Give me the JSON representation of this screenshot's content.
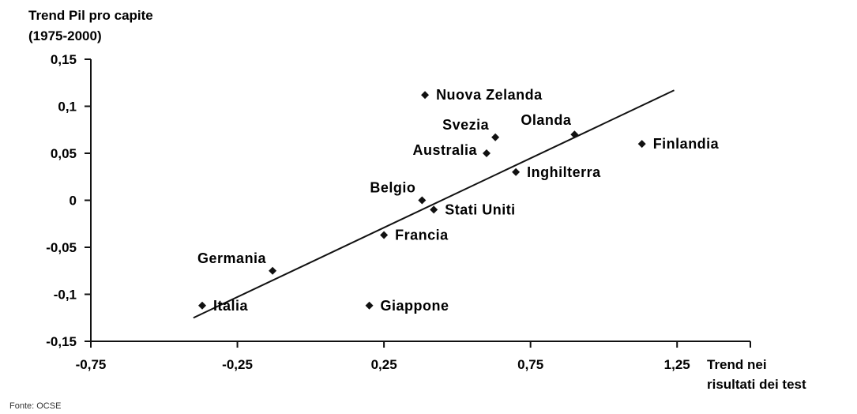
{
  "chart_data": {
    "type": "scatter",
    "ylabel": [
      "Trend Pil pro capite",
      "(1975-2000)"
    ],
    "xlabel": [
      "Trend nei",
      "risultati dei test"
    ],
    "xlim": [
      -0.75,
      1.5
    ],
    "ylim": [
      -0.15,
      0.15
    ],
    "xticks": [
      {
        "value": -0.75,
        "label": "-0,75"
      },
      {
        "value": -0.25,
        "label": "-0,25"
      },
      {
        "value": 0.25,
        "label": "0,25"
      },
      {
        "value": 0.75,
        "label": "0,75"
      },
      {
        "value": 1.25,
        "label": "1,25"
      }
    ],
    "yticks": [
      {
        "value": 0.15,
        "label": "0,15"
      },
      {
        "value": 0.1,
        "label": "0,1"
      },
      {
        "value": 0.05,
        "label": "0,05"
      },
      {
        "value": 0,
        "label": "0"
      },
      {
        "value": -0.05,
        "label": "-0,05"
      },
      {
        "value": -0.1,
        "label": "-0,1"
      },
      {
        "value": -0.15,
        "label": "-0,15"
      }
    ],
    "points": [
      {
        "label": "Nuova Zelanda",
        "x": 0.39,
        "y": 0.112,
        "pos": "right"
      },
      {
        "label": "Svezia",
        "x": 0.63,
        "y": 0.067,
        "pos": "above-left"
      },
      {
        "label": "Olanda",
        "x": 0.9,
        "y": 0.07,
        "pos": "above-left2"
      },
      {
        "label": "Australia",
        "x": 0.6,
        "y": 0.05,
        "pos": "left"
      },
      {
        "label": "Finlandia",
        "x": 1.13,
        "y": 0.06,
        "pos": "right"
      },
      {
        "label": "Inghilterra",
        "x": 0.7,
        "y": 0.03,
        "pos": "right"
      },
      {
        "label": "Belgio",
        "x": 0.38,
        "y": 0.0,
        "pos": "above-left"
      },
      {
        "label": "Stati Uniti",
        "x": 0.42,
        "y": -0.01,
        "pos": "right"
      },
      {
        "label": "Francia",
        "x": 0.25,
        "y": -0.037,
        "pos": "right"
      },
      {
        "label": "Germania",
        "x": -0.13,
        "y": -0.075,
        "pos": "above-left"
      },
      {
        "label": "Italia",
        "x": -0.37,
        "y": -0.112,
        "pos": "right"
      },
      {
        "label": "Giappone",
        "x": 0.2,
        "y": -0.112,
        "pos": "right"
      }
    ],
    "trendline": {
      "x1": -0.4,
      "y1": -0.125,
      "x2": 1.24,
      "y2": 0.117
    },
    "grid": false,
    "legend": "none"
  },
  "source": "Fonte: OCSE"
}
